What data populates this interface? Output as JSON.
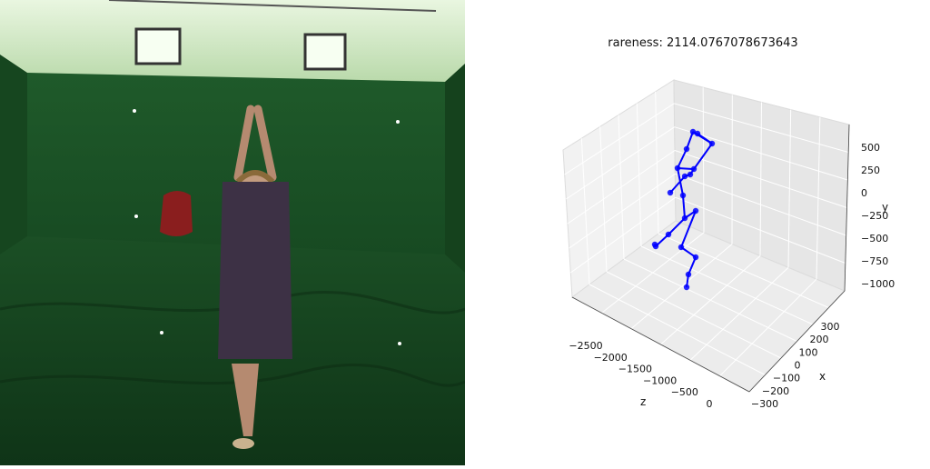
{
  "photo": {
    "description_icon": "person-doing-yoga-pose-in-green-screen-studio"
  },
  "chart_data": {
    "type": "scatter",
    "title": "rareness: 2114.0767078673643",
    "projection": "3d",
    "series_color": "#0000ff",
    "axes": {
      "z": {
        "label": "z",
        "ticks": [
          "−2500",
          "−2000",
          "−1500",
          "−1000",
          "−500",
          "0"
        ]
      },
      "x": {
        "label": "x",
        "ticks": [
          "300",
          "200",
          "100",
          "0",
          "−100",
          "−200",
          "−300"
        ]
      },
      "y": {
        "label": "y",
        "ticks": [
          "500",
          "250",
          "0",
          "−250",
          "−500",
          "−750",
          "−1000"
        ]
      }
    }
  }
}
